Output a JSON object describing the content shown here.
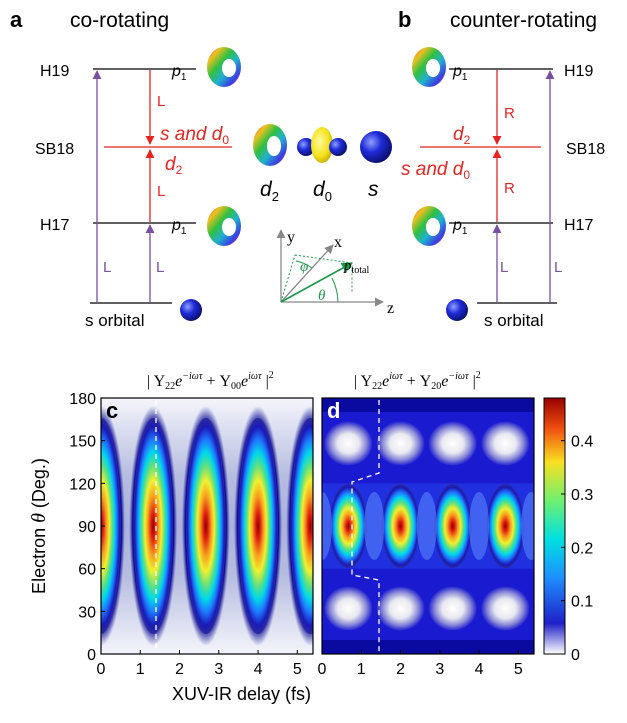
{
  "panels": {
    "a": {
      "letter": "a",
      "title": "co-rotating"
    },
    "b": {
      "letter": "b",
      "title": "counter-rotating"
    },
    "c": {
      "letter": "c"
    },
    "d": {
      "letter": "d"
    }
  },
  "levels": {
    "h19": "H19",
    "sb18": "SB18",
    "h17": "H17",
    "p1": "p",
    "p1_sub": "1",
    "s_orbital": "s orbital"
  },
  "transitions": {
    "L": "L",
    "R": "R",
    "s_and_d0": "s and d",
    "s_and_d0_sub": "0",
    "d2": "d",
    "d2_sub": "2"
  },
  "orbitals": {
    "d2": "d",
    "d2_sub": "2",
    "d0": "d",
    "d0_sub": "0",
    "s": "s"
  },
  "axes3d": {
    "x": "x",
    "y": "y",
    "z": "z",
    "phi": "φ",
    "theta": "θ",
    "p": "p",
    "p_sub": "total"
  },
  "colors": {
    "red": "#e8231f",
    "purple": "#7a4fa3",
    "green": "#1a9b4a",
    "orbital_blue": "#1f2bd8"
  },
  "chart_data": [
    {
      "type": "heatmap",
      "panel": "c",
      "title": "|Y22e^{−iωτ} + Y00e^{iωτ}|²",
      "xlabel": "XUV-IR delay (fs)",
      "ylabel": "Electron θ (Deg.)",
      "xlim": [
        0,
        5.4
      ],
      "ylim": [
        0,
        180
      ],
      "xticks": [
        0,
        1,
        2,
        3,
        4,
        5
      ],
      "yticks": [
        0,
        30,
        60,
        90,
        120,
        150,
        180
      ],
      "peak_delays_fs": [
        0,
        1.33,
        2.67,
        4.0,
        5.33
      ],
      "peak_theta_deg": 90,
      "dashed_marker_fs": 1.33
    },
    {
      "type": "heatmap",
      "panel": "d",
      "title": "|Y22e^{iωτ} + Y20e^{−iωτ}|²",
      "xlabel": "XUV-IR delay (fs)",
      "xlim": [
        0,
        5.4
      ],
      "ylim": [
        0,
        180
      ],
      "xticks": [
        0,
        1,
        2,
        3,
        4,
        5
      ],
      "peak_delays_fs": [
        0.67,
        2.0,
        3.33,
        4.67
      ],
      "peak_theta_deg": 90,
      "colorbar": {
        "min": 0,
        "max": 0.48,
        "ticks": [
          0,
          0.1,
          0.2,
          0.3,
          0.4
        ]
      }
    }
  ],
  "formula_c": {
    "pre": "| Y",
    "s1": "22",
    "e1": "e",
    "x1": "−iωτ",
    "plus": " + Y",
    "s2": "00",
    "e2": "e",
    "x2": "iωτ",
    "post": " |",
    "sq": "2"
  },
  "formula_d": {
    "pre": "| Y",
    "s1": "22",
    "e1": "e",
    "x1": "iωτ",
    "plus": " + Y",
    "s2": "20",
    "e2": "e",
    "x2": "−iωτ",
    "post": " |",
    "sq": "2"
  },
  "axis_text": {
    "xlabel": "XUV-IR delay (fs)",
    "ylabel_pre": "Electron ",
    "ylabel_theta": "θ",
    "ylabel_post": " (Deg.)"
  }
}
